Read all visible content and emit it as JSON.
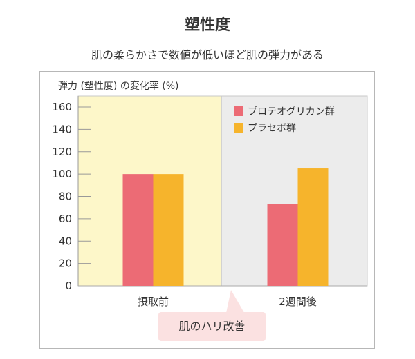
{
  "title": "塑性度",
  "subtitle": "肌の柔らかさで数値が低いほど肌の弾力がある",
  "callout": "肌のハリ改善",
  "colors": {
    "series1": "#ec6b75",
    "series2": "#f6b42c",
    "before_bg": "#fdf7c9",
    "after_bg": "#ececec"
  },
  "chart_data": {
    "type": "bar",
    "title": "",
    "ylabel": "弾力 (塑性度) の変化率 (%)",
    "xlabel": "",
    "categories": [
      "摂取前",
      "2週間後"
    ],
    "series": [
      {
        "name": "プロテオグリカン群",
        "values": [
          100,
          73
        ]
      },
      {
        "name": "プラセボ群",
        "values": [
          100,
          105
        ]
      }
    ],
    "ylim": [
      0,
      160
    ],
    "yticks": [
      0,
      20,
      40,
      60,
      80,
      100,
      120,
      140,
      160
    ],
    "legend": "top-right",
    "grid": false
  }
}
